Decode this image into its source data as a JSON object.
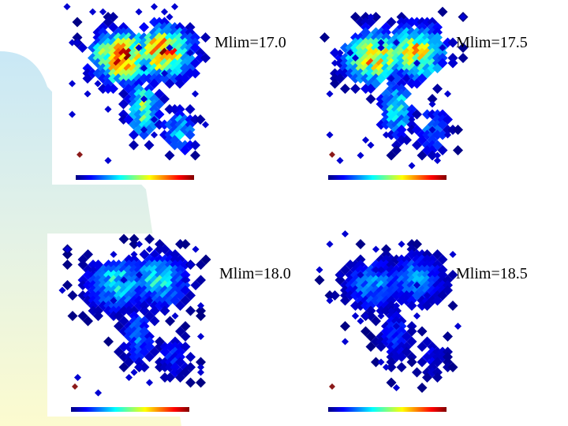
{
  "colors": {
    "slide_blue": "#c9e8f6",
    "slide_green": "#e4f2e6",
    "slide_yellow": "#fcfbcf",
    "outlier": "#8b1a1a"
  },
  "chart_data": [
    {
      "type": "heatmap",
      "label": "Mlim=17.0",
      "colormap": "jet",
      "colorbar": {
        "min_label": "",
        "max_label": ""
      },
      "peak": 1.0,
      "spread": 1.0
    },
    {
      "type": "heatmap",
      "label": "Mlim=17.5",
      "colormap": "jet",
      "colorbar": {
        "min_label": "",
        "max_label": ""
      },
      "peak": 0.85,
      "spread": 1.0
    },
    {
      "type": "heatmap",
      "label": "Mlim=18.0",
      "colormap": "jet",
      "colorbar": {
        "min_label": "",
        "max_label": ""
      },
      "peak": 0.5,
      "spread": 1.0
    },
    {
      "type": "heatmap",
      "label": "Mlim=18.5",
      "colormap": "jet",
      "colorbar": {
        "min_label": "",
        "max_label": ""
      },
      "peak": 0.42,
      "spread": 0.8
    }
  ]
}
